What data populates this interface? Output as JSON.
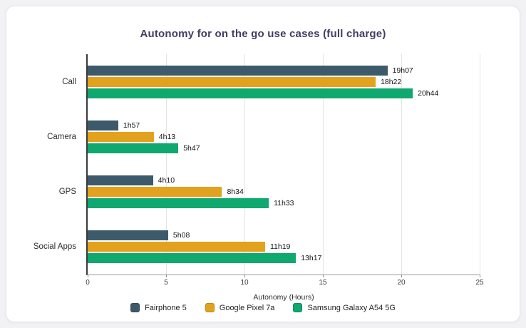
{
  "card": {
    "title": "Autonomy for on the go use cases (full charge)"
  },
  "chart_data": {
    "type": "bar",
    "orientation": "horizontal",
    "title": "Autonomy for on the go use cases (full charge)",
    "xlabel": "Autonomy (Hours)",
    "xlim": [
      0,
      25
    ],
    "x_ticks": [
      0,
      5,
      10,
      15,
      20,
      25
    ],
    "grid": true,
    "legend_position": "bottom",
    "categories": [
      "Call",
      "Camera",
      "GPS",
      "Social Apps"
    ],
    "series": [
      {
        "name": "Fairphone 5",
        "color": "#3d5a6b",
        "values": [
          19.117,
          1.95,
          4.167,
          5.133
        ],
        "labels": [
          "19h07",
          "1h57",
          "4h10",
          "5h08"
        ]
      },
      {
        "name": "Google Pixel 7a",
        "color": "#e3a21d",
        "values": [
          18.367,
          4.217,
          8.567,
          11.317
        ],
        "labels": [
          "18h22",
          "4h13",
          "8h34",
          "11h19"
        ]
      },
      {
        "name": "Samsung Galaxy A54 5G",
        "color": "#0fa86e",
        "values": [
          20.733,
          5.783,
          11.55,
          13.283
        ],
        "labels": [
          "20h44",
          "5h47",
          "11h33",
          "13h17"
        ]
      }
    ]
  }
}
